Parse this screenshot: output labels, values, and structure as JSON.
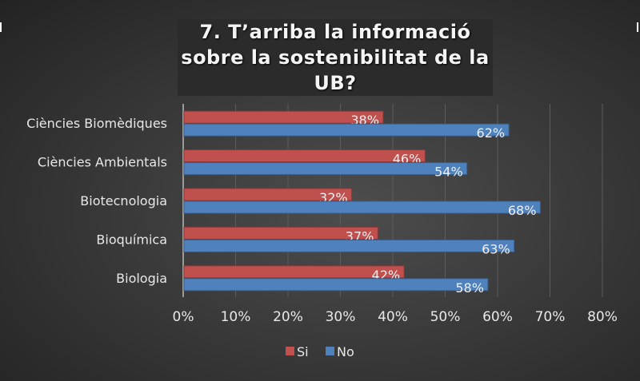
{
  "chart_data": {
    "type": "bar",
    "orientation": "horizontal",
    "title": "7. T’arriba la informació sobre la sostenibilitat de la UB?",
    "categories": [
      "Ciències Biomèdiques",
      "Ciències Ambientals",
      "Biotecnologia",
      "Bioquímica",
      "Biologia"
    ],
    "series": [
      {
        "name": "Si",
        "color": "#c0504d",
        "values": [
          38,
          46,
          32,
          37,
          42
        ],
        "labels": [
          "38%",
          "46%",
          "32%",
          "37%",
          "42%"
        ]
      },
      {
        "name": "No",
        "color": "#4f81bd",
        "values": [
          62,
          54,
          68,
          63,
          58
        ],
        "labels": [
          "62%",
          "54%",
          "68%",
          "63%",
          "58%"
        ]
      }
    ],
    "xlim": [
      0,
      80
    ],
    "xticks": [
      "0%",
      "10%",
      "20%",
      "30%",
      "40%",
      "50%",
      "60%",
      "70%",
      "80%"
    ],
    "grid": true,
    "legend": "bottom"
  }
}
